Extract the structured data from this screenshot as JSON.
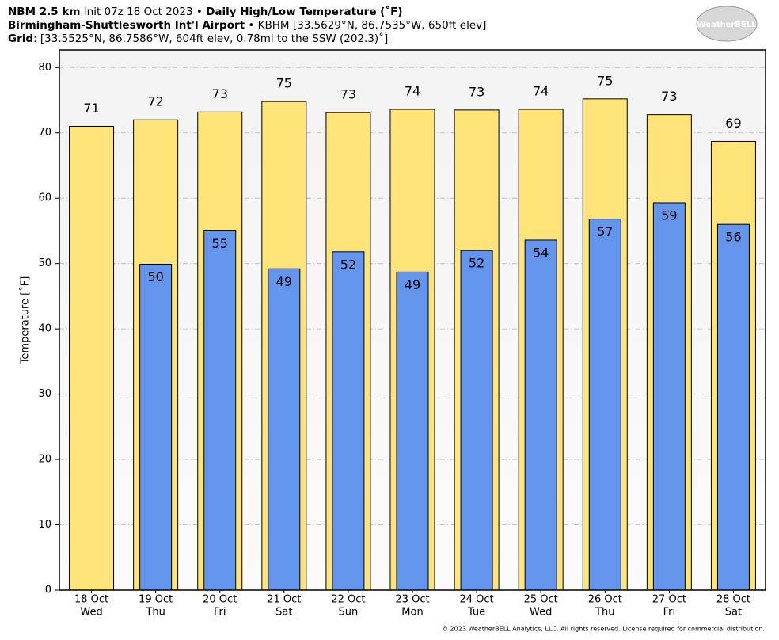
{
  "chart_data": {
    "type": "bar",
    "title_lines": [
      [
        {
          "text": "NBM 2.5 km",
          "bold": true
        },
        {
          "text": " Init 07z 18 Oct 2023 • ",
          "bold": false
        },
        {
          "text": "Daily High/Low Temperature (˚F)",
          "bold": true
        }
      ],
      [
        {
          "text": "Birmingham-Shuttlesworth Int'l Airport",
          "bold": true
        },
        {
          "text": " • KBHM [33.5629°N, 86.7535°W, 650ft elev]",
          "bold": false
        }
      ],
      [
        {
          "text": "Grid",
          "bold": true
        },
        {
          "text": ": [33.5525°N, 86.7586°W, 604ft elev, 0.78mi to the SSW (202.3)˚]",
          "bold": false
        }
      ]
    ],
    "logo": "WeatherBELL",
    "footer": "© 2023 WeatherBELL Analytics, LLC. All rights reserved. License required for commercial distribution.",
    "ylabel": "Temperature [˚F]",
    "categories": [
      [
        "18 Oct",
        "Wed"
      ],
      [
        "19 Oct",
        "Thu"
      ],
      [
        "20 Oct",
        "Fri"
      ],
      [
        "21 Oct",
        "Sat"
      ],
      [
        "22 Oct",
        "Sun"
      ],
      [
        "23 Oct",
        "Mon"
      ],
      [
        "24 Oct",
        "Tue"
      ],
      [
        "25 Oct",
        "Wed"
      ],
      [
        "26 Oct",
        "Thu"
      ],
      [
        "27 Oct",
        "Fri"
      ],
      [
        "28 Oct",
        "Sat"
      ]
    ],
    "series": [
      {
        "name": "High",
        "color": "#ffe47a",
        "values": [
          71.0,
          72.0,
          73.2,
          74.8,
          73.1,
          73.6,
          73.5,
          73.6,
          75.2,
          72.8,
          68.7
        ],
        "value_labels": [
          "71",
          "72",
          "73",
          "75",
          "73",
          "74",
          "73",
          "74",
          "75",
          "73",
          "69"
        ]
      },
      {
        "name": "Low",
        "color": "#6495ed",
        "values": [
          null,
          49.9,
          55.0,
          49.2,
          51.8,
          48.7,
          52.0,
          53.6,
          56.8,
          59.3,
          56.0
        ],
        "value_labels": [
          null,
          "50",
          "55",
          "49",
          "52",
          "49",
          "52",
          "54",
          "57",
          "59",
          "56"
        ]
      }
    ],
    "ylim": [
      0,
      82.7
    ],
    "yticks": [
      0,
      10,
      20,
      30,
      40,
      50,
      60,
      70,
      80
    ],
    "grid": true
  }
}
